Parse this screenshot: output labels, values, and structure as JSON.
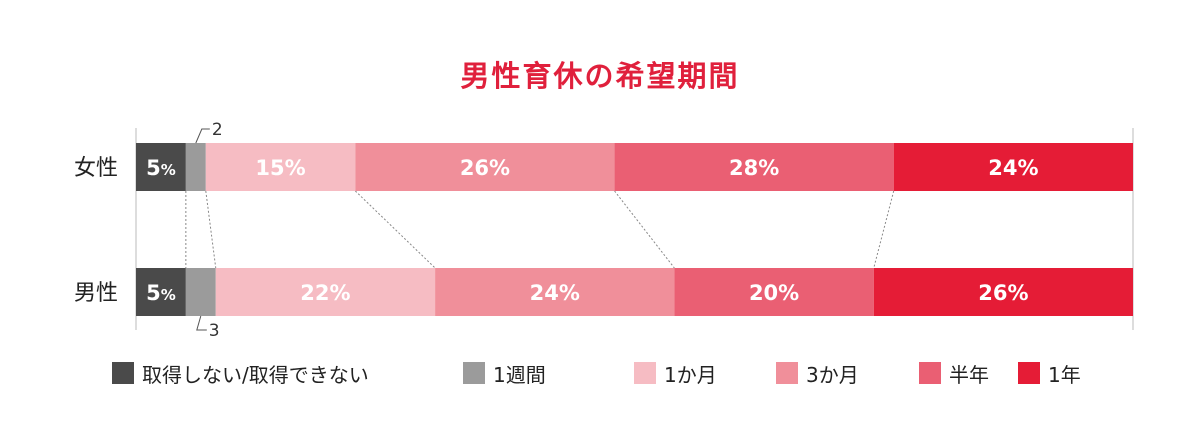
{
  "chart_data": {
    "type": "bar",
    "orientation": "horizontal",
    "stacked": "100%",
    "title": "男性育休の希望期間",
    "categories": [
      "女性",
      "男性"
    ],
    "series": [
      {
        "name": "取得しない/取得できない",
        "color": "#4a4a4a",
        "values": [
          5,
          5
        ],
        "labels": [
          "5%",
          "5%"
        ]
      },
      {
        "name": "1週間",
        "color": "#9b9b9b",
        "values": [
          2,
          3
        ],
        "labels": [
          "2",
          "3"
        ]
      },
      {
        "name": "1か月",
        "color": "#f6bcc3",
        "values": [
          15,
          22
        ],
        "labels": [
          "15%",
          "22%"
        ]
      },
      {
        "name": "3か月",
        "color": "#f08f9a",
        "values": [
          26,
          24
        ],
        "labels": [
          "26%",
          "24%"
        ]
      },
      {
        "name": "半年",
        "color": "#ea5f73",
        "values": [
          28,
          20
        ],
        "labels": [
          "28%",
          "20%"
        ]
      },
      {
        "name": "1年",
        "color": "#e51c36",
        "values": [
          24,
          26
        ],
        "labels": [
          "24%",
          "26%"
        ]
      }
    ],
    "legend_position": "bottom",
    "connector_lines": true,
    "xlim": [
      0,
      100
    ]
  }
}
